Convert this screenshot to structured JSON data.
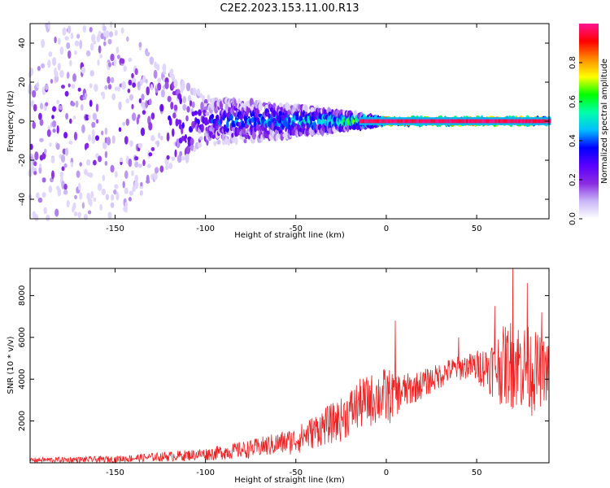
{
  "title": "C2E2.2023.153.11.00.R13",
  "chart_data": [
    {
      "type": "heatmap",
      "xlabel": "Height of straight line (km)",
      "ylabel": "Frequency (Hz)",
      "xlim": [
        -197,
        90
      ],
      "ylim": [
        -50,
        50
      ],
      "xticks": [
        -150,
        -100,
        -50,
        0,
        50
      ],
      "yticks": [
        -40,
        -20,
        0,
        20,
        40
      ],
      "colorbar": {
        "label": "Normalized spectral amplitude",
        "range": [
          0,
          1
        ],
        "ticks": [
          "0.0",
          "0.2",
          "0.4",
          "0.6",
          "0.8"
        ],
        "colors": [
          "#ffffff",
          "#c9b6f7",
          "#8a2be2",
          "#5a00ff",
          "#0000ff",
          "#00bfff",
          "#00ffaa",
          "#00ff00",
          "#ffff00",
          "#ff8c00",
          "#ff0000",
          "#ff1493"
        ]
      },
      "description_points": [
        {
          "x": -150,
          "freq_spread": 50,
          "amplitude": 0.15
        },
        {
          "x": -100,
          "freq_spread": 12,
          "amplitude": 0.3
        },
        {
          "x": -50,
          "freq_spread": 8,
          "amplitude": 0.45
        },
        {
          "x": -20,
          "freq_spread": 4,
          "amplitude": 0.6
        },
        {
          "x": 0,
          "freq_spread": 1,
          "amplitude": 0.9
        },
        {
          "x": 50,
          "freq_spread": 1,
          "amplitude": 0.95
        },
        {
          "x": 88,
          "freq_spread": 1,
          "amplitude": 0.95
        }
      ]
    },
    {
      "type": "line",
      "xlabel": "Height of straight line (km)",
      "ylabel": "SNR (10 * v/v)",
      "xlim": [
        -197,
        90
      ],
      "ylim": [
        0,
        9300
      ],
      "xticks": [
        -150,
        -100,
        -50,
        0,
        50
      ],
      "yticks": [
        2000,
        4000,
        6000,
        8000
      ],
      "color": "#ee2222",
      "envelope": {
        "x": [
          -197,
          -175,
          -150,
          -125,
          -100,
          -75,
          -50,
          -35,
          -25,
          -15,
          -5,
          0,
          5,
          15,
          25,
          35,
          45,
          55,
          62,
          70,
          80,
          90
        ],
        "lo": [
          0,
          0,
          0,
          50,
          100,
          200,
          400,
          800,
          1000,
          1500,
          1800,
          1600,
          2200,
          2800,
          3300,
          3800,
          4000,
          3500,
          2800,
          2500,
          2200,
          3000
        ],
        "hi": [
          250,
          280,
          330,
          500,
          700,
          1100,
          1700,
          2600,
          3100,
          4000,
          4400,
          4600,
          4300,
          4300,
          4600,
          5000,
          5200,
          5600,
          6300,
          7000,
          6500,
          5700
        ]
      },
      "peaks": [
        {
          "x": 5,
          "y": 6800
        },
        {
          "x": 40,
          "y": 6000
        },
        {
          "x": 60,
          "y": 7500
        },
        {
          "x": 70,
          "y": 9300
        },
        {
          "x": 78,
          "y": 8600
        },
        {
          "x": 86,
          "y": 7200
        }
      ]
    }
  ]
}
